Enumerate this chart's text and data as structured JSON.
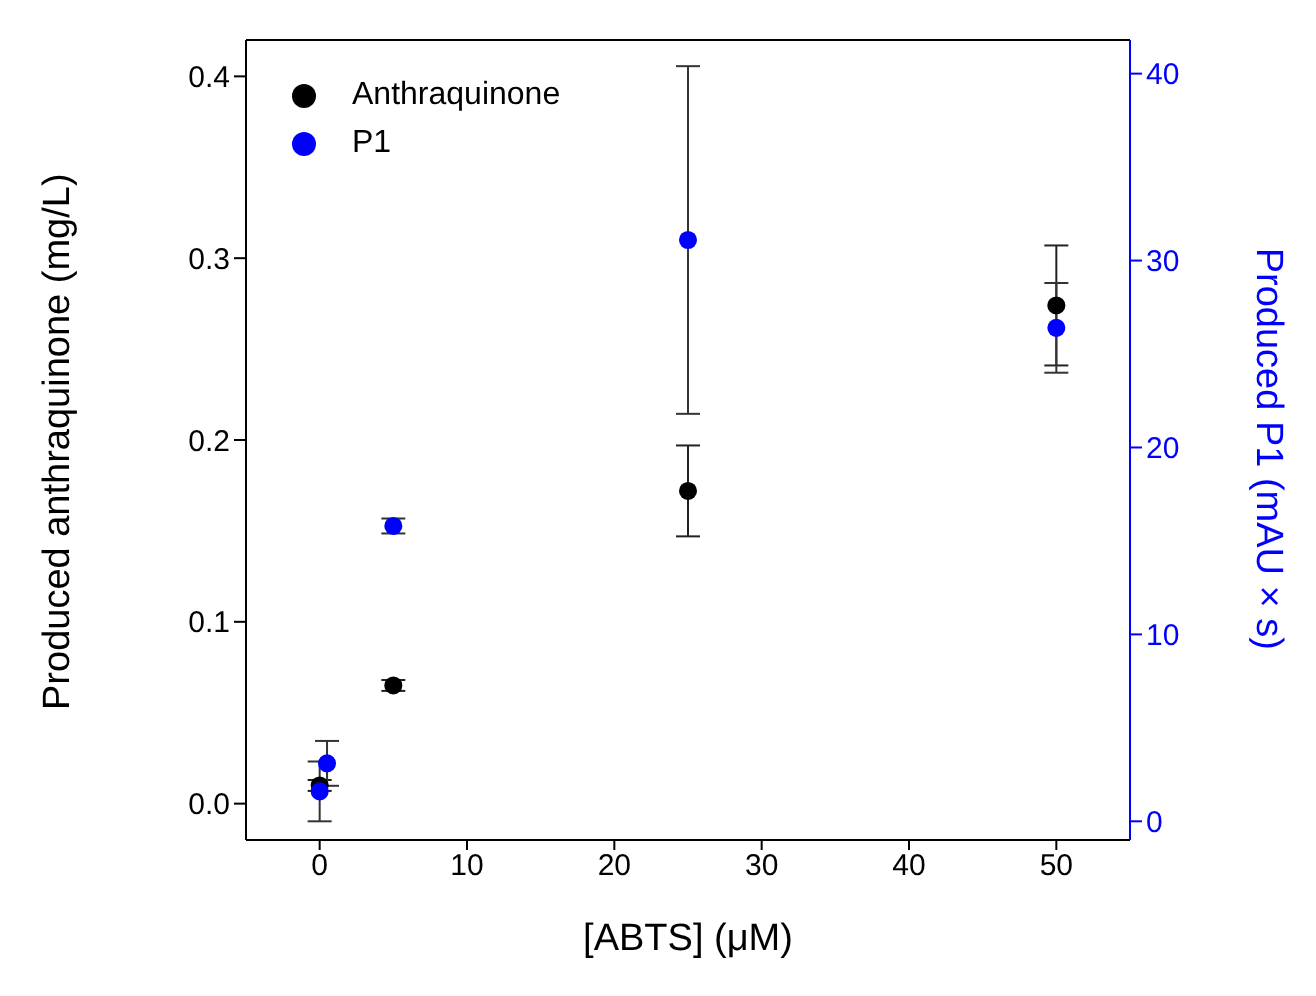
{
  "chart_data": {
    "type": "scatter",
    "xlabel": "[ABTS] (μM)",
    "ylabel": "Produced anthraquinone (mg/L)",
    "y2label": "Produced P1 (mAU × s)",
    "xlim": [
      -5,
      55
    ],
    "xticks": [
      0,
      10,
      20,
      30,
      40,
      50
    ],
    "ylim": [
      -0.02,
      0.42
    ],
    "yticks": [
      {
        "value": 0,
        "label": "0.0"
      },
      0.1,
      0.2,
      0.3,
      0.4
    ],
    "y2lim": [
      -1,
      41.8
    ],
    "y2ticks": [
      0,
      10,
      20,
      30,
      40
    ],
    "marker": "circle",
    "legend": "top left",
    "series": [
      {
        "name": "Anthraquinone",
        "color": "#000000",
        "x": [
          0,
          5,
          25,
          50
        ],
        "values": [
          0.01,
          0.065,
          0.172,
          0.274
        ],
        "errors": [
          0.003,
          0.003,
          0.025,
          0.033
        ]
      },
      {
        "name": "P1",
        "color": "#0000ff",
        "axis": "y2",
        "x": [
          0,
          0.5,
          5,
          25,
          50
        ],
        "values": [
          1.6,
          3.1,
          15.8,
          31.1,
          26.4
        ],
        "errors": [
          1.6,
          1.2,
          0.4,
          9.3,
          2.4
        ]
      }
    ]
  }
}
